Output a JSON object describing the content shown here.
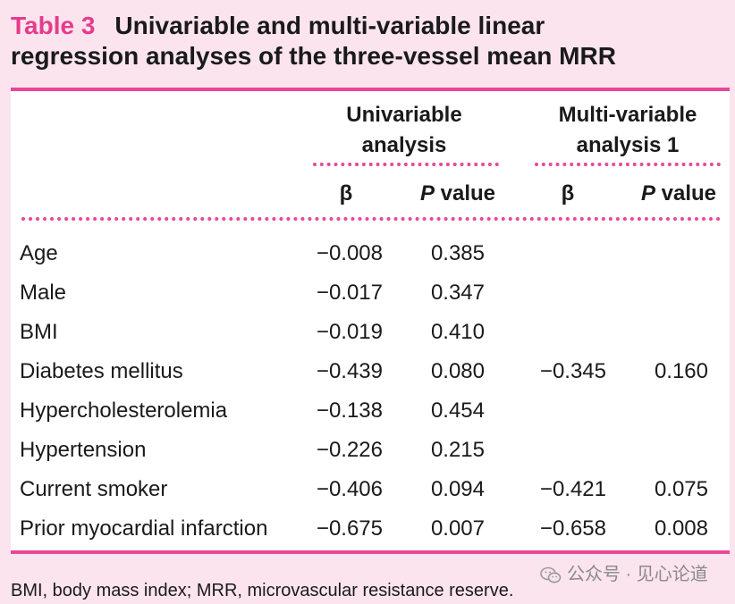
{
  "title": {
    "label": "Table 3",
    "line1": "Univariable and multi-variable linear",
    "line2": "regression analyses of the three-vessel mean MRR"
  },
  "table": {
    "groups": [
      {
        "line1": "Univariable",
        "line2": "analysis"
      },
      {
        "line1": "Multi-variable",
        "line2": "analysis 1"
      }
    ],
    "subheaders": {
      "beta": "β",
      "p_italic": "P",
      "p_rest": " value"
    },
    "rows": [
      {
        "label": "Age",
        "b1": "−0.008",
        "p1": "0.385",
        "b2": "",
        "p2": ""
      },
      {
        "label": "Male",
        "b1": "−0.017",
        "p1": "0.347",
        "b2": "",
        "p2": ""
      },
      {
        "label": "BMI",
        "b1": "−0.019",
        "p1": "0.410",
        "b2": "",
        "p2": ""
      },
      {
        "label": "Diabetes mellitus",
        "b1": "−0.439",
        "p1": "0.080",
        "b2": "−0.345",
        "p2": "0.160"
      },
      {
        "label": "Hypercholesterolemia",
        "b1": "−0.138",
        "p1": "0.454",
        "b2": "",
        "p2": ""
      },
      {
        "label": "Hypertension",
        "b1": "−0.226",
        "p1": "0.215",
        "b2": "",
        "p2": ""
      },
      {
        "label": "Current smoker",
        "b1": "−0.406",
        "p1": "0.094",
        "b2": "−0.421",
        "p2": "0.075"
      },
      {
        "label": "Prior myocardial infarction",
        "b1": "−0.675",
        "p1": "0.007",
        "b2": "−0.658",
        "p2": "0.008"
      }
    ]
  },
  "footnote": "BMI, body mass index; MRR, microvascular resistance reserve.",
  "watermark": "公众号 · 见心论道",
  "colors": {
    "accent": "#e8479a",
    "title_label": "#e63b8c",
    "background": "#fbe4ee"
  }
}
